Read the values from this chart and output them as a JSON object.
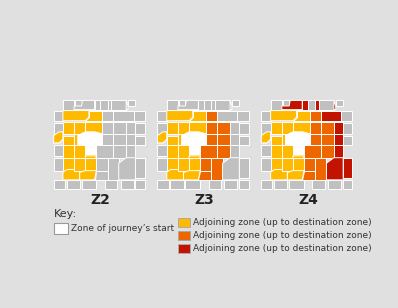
{
  "bg_color": "#e0e0e0",
  "colors": {
    "white": "#ffffff",
    "yellow": "#FFBA00",
    "orange": "#EE6600",
    "red": "#C41200",
    "gray": "#c0c0c0",
    "gray2": "#b0b0b0",
    "outline": "#ffffff"
  },
  "zone_labels": [
    "Z2",
    "Z3",
    "Z4"
  ],
  "label_fontsize": 10,
  "label_fontweight": "bold",
  "key_title": "Key:",
  "legend_left": [
    {
      "color": "#ffffff",
      "text": "Zone of journey’s start",
      "ec": "#aaaaaa"
    }
  ],
  "legend_right": [
    {
      "color": "#FFBA00",
      "text": "Adjoining zone (up to destination zone)"
    },
    {
      "color": "#EE6600",
      "text": "Adjoining zone (up to destination zone)"
    },
    {
      "color": "#C41200",
      "text": "Adjoining zone (up to destination zone)"
    }
  ],
  "legend_fontsize": 6.5
}
